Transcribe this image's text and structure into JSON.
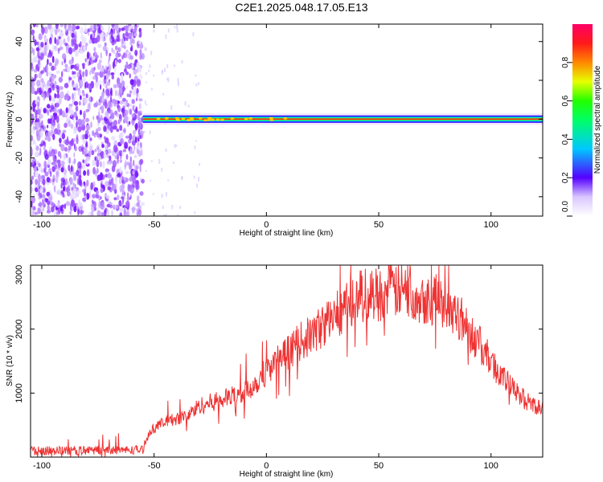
{
  "title": "C2E1.2025.048.17.05.E13",
  "chart_data": [
    {
      "type": "heatmap",
      "xlabel": "Height of straight line (km)",
      "ylabel": "Frequency (Hz)",
      "xlim": [
        -105,
        123
      ],
      "ylim": [
        -50,
        49
      ],
      "x_ticks": [
        "-100",
        "-50",
        "0",
        "50",
        "100"
      ],
      "y_ticks": [
        "-40",
        "-20",
        "0",
        "20",
        "40"
      ],
      "colorbar": {
        "label": "Normalized spectral amplitude",
        "range": [
          0,
          1
        ],
        "ticks": [
          "0.0",
          "0.2",
          "0.4",
          "0.6",
          "0.8"
        ]
      },
      "regions": [
        {
          "description": "diffuse noise",
          "x_range": [
            -105,
            -55
          ],
          "frequency_range": [
            -50,
            49
          ],
          "amplitude": 0.15
        },
        {
          "description": "carrier line",
          "x_range": [
            -55,
            123
          ],
          "frequency": 0,
          "amplitude": 1.0
        }
      ]
    },
    {
      "type": "line",
      "xlabel": "Height of straight line (km)",
      "ylabel": "SNR (10 * v/v)",
      "xlim": [
        -105,
        123
      ],
      "ylim": [
        0,
        3000
      ],
      "x_ticks": [
        "-100",
        "-50",
        "0",
        "50",
        "100"
      ],
      "y_ticks": [
        "1000",
        "2000",
        "3000"
      ],
      "series": [
        {
          "color": "#ee3333",
          "x": [
            -105,
            -90,
            -75,
            -60,
            -55,
            -52,
            -48,
            -45,
            -40,
            -35,
            -30,
            -25,
            -20,
            -15,
            -10,
            -5,
            0,
            5,
            10,
            15,
            20,
            25,
            30,
            35,
            40,
            45,
            50,
            55,
            60,
            65,
            70,
            75,
            80,
            85,
            90,
            95,
            100,
            105,
            110,
            115,
            120,
            123
          ],
          "y": [
            100,
            100,
            110,
            110,
            120,
            400,
            500,
            550,
            600,
            650,
            800,
            850,
            900,
            950,
            1000,
            1150,
            1350,
            1500,
            1650,
            1800,
            1900,
            2050,
            2200,
            2350,
            2500,
            2550,
            2550,
            2600,
            2600,
            2550,
            2500,
            2450,
            2400,
            2250,
            2000,
            1750,
            1500,
            1250,
            1050,
            900,
            800,
            750
          ]
        }
      ]
    }
  ]
}
